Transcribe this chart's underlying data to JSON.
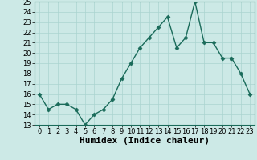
{
  "x": [
    0,
    1,
    2,
    3,
    4,
    5,
    6,
    7,
    8,
    9,
    10,
    11,
    12,
    13,
    14,
    15,
    16,
    17,
    18,
    19,
    20,
    21,
    22,
    23
  ],
  "y": [
    16,
    14.5,
    15,
    15,
    14.5,
    13,
    14,
    14.5,
    15.5,
    17.5,
    19,
    20.5,
    21.5,
    22.5,
    23.5,
    20.5,
    21.5,
    25,
    21,
    21,
    19.5,
    19.5,
    18,
    16
  ],
  "line_color": "#1a6b5a",
  "marker": "D",
  "markersize": 2.5,
  "linewidth": 1.0,
  "xlabel": "Humidex (Indice chaleur)",
  "xlim": [
    -0.5,
    23.5
  ],
  "ylim": [
    13,
    25
  ],
  "yticks": [
    13,
    14,
    15,
    16,
    17,
    18,
    19,
    20,
    21,
    22,
    23,
    24,
    25
  ],
  "xticks": [
    0,
    1,
    2,
    3,
    4,
    5,
    6,
    7,
    8,
    9,
    10,
    11,
    12,
    13,
    14,
    15,
    16,
    17,
    18,
    19,
    20,
    21,
    22,
    23
  ],
  "bg_color": "#cce9e6",
  "grid_color": "#aad4d0",
  "tick_fontsize": 6,
  "xlabel_fontsize": 8
}
